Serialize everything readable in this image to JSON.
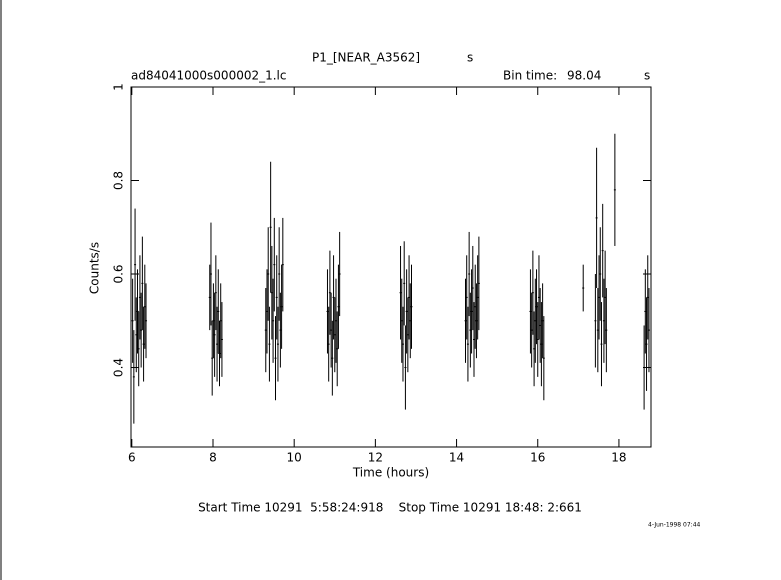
{
  "chart_data": {
    "type": "errorbar",
    "title": "P1_[NEAR_A3562]",
    "title_suffix": "s",
    "file_label": "ad84041000s000002_1.lc",
    "bin_time_label": "Bin time:",
    "bin_time": "98.04",
    "bin_time_unit": "s",
    "xlabel": "Time (hours)",
    "ylabel": "Counts/s",
    "footer": "Start Time 10291  5:58:24:918    Stop Time 10291 18:48: 2:661",
    "date": "4-Jun-1998 07:44",
    "color": "#000000",
    "xlim": [
      5.98,
      18.79
    ],
    "ylim": [
      0.23,
      1
    ],
    "xticks": [
      6,
      8,
      10,
      12,
      14,
      16,
      18
    ],
    "yticks": [
      0.4,
      0.6,
      0.8,
      1
    ],
    "x": [
      6.02,
      6.05,
      6.08,
      6.11,
      6.14,
      6.17,
      6.2,
      6.23,
      6.26,
      6.29,
      6.32,
      6.35,
      7.92,
      7.95,
      7.98,
      8.01,
      8.04,
      8.07,
      8.1,
      8.13,
      8.16,
      8.19,
      8.22,
      9.3,
      9.33,
      9.36,
      9.39,
      9.42,
      9.45,
      9.48,
      9.51,
      9.54,
      9.57,
      9.6,
      9.63,
      9.66,
      9.69,
      9.72,
      10.82,
      10.85,
      10.88,
      10.91,
      10.94,
      10.97,
      11.0,
      11.03,
      11.06,
      11.09,
      11.12,
      12.62,
      12.65,
      12.68,
      12.71,
      12.74,
      12.77,
      12.8,
      12.83,
      12.86,
      12.89,
      14.22,
      14.25,
      14.28,
      14.31,
      14.34,
      14.37,
      14.4,
      14.43,
      14.46,
      14.49,
      14.52,
      14.55,
      15.82,
      15.85,
      15.88,
      15.91,
      15.94,
      15.97,
      16.0,
      16.03,
      16.06,
      16.09,
      16.12,
      16.15,
      17.12,
      17.42,
      17.45,
      17.48,
      17.51,
      17.54,
      17.57,
      17.6,
      17.63,
      17.66,
      17.69,
      17.9,
      18.62,
      18.65,
      18.68,
      18.71,
      18.74
    ],
    "values": [
      0.5,
      0.38,
      0.62,
      0.47,
      0.52,
      0.44,
      0.55,
      0.48,
      0.58,
      0.45,
      0.53,
      0.5,
      0.55,
      0.6,
      0.42,
      0.5,
      0.47,
      0.56,
      0.45,
      0.52,
      0.43,
      0.5,
      0.46,
      0.48,
      0.52,
      0.6,
      0.45,
      0.7,
      0.56,
      0.5,
      0.62,
      0.42,
      0.55,
      0.45,
      0.6,
      0.48,
      0.53,
      0.62,
      0.52,
      0.45,
      0.56,
      0.48,
      0.42,
      0.55,
      0.47,
      0.5,
      0.44,
      0.53,
      0.6,
      0.56,
      0.5,
      0.45,
      0.58,
      0.4,
      0.52,
      0.47,
      0.55,
      0.5,
      0.53,
      0.5,
      0.55,
      0.45,
      0.6,
      0.48,
      0.52,
      0.57,
      0.46,
      0.53,
      0.5,
      0.55,
      0.58,
      0.52,
      0.48,
      0.56,
      0.44,
      0.5,
      0.53,
      0.46,
      0.55,
      0.49,
      0.45,
      0.5,
      0.42,
      0.57,
      0.5,
      0.72,
      0.48,
      0.55,
      0.6,
      0.45,
      0.65,
      0.5,
      0.55,
      0.48,
      0.78,
      0.4,
      0.52,
      0.45,
      0.55,
      0.48
    ],
    "errors": [
      0.09,
      0.1,
      0.12,
      0.08,
      0.09,
      0.08,
      0.09,
      0.08,
      0.1,
      0.08,
      0.09,
      0.08,
      0.07,
      0.11,
      0.08,
      0.08,
      0.09,
      0.08,
      0.08,
      0.09,
      0.07,
      0.08,
      0.08,
      0.09,
      0.09,
      0.1,
      0.08,
      0.14,
      0.1,
      0.09,
      0.1,
      0.09,
      0.09,
      0.08,
      0.1,
      0.08,
      0.09,
      0.1,
      0.09,
      0.08,
      0.09,
      0.08,
      0.08,
      0.09,
      0.08,
      0.09,
      0.08,
      0.09,
      0.09,
      0.1,
      0.09,
      0.08,
      0.09,
      0.09,
      0.09,
      0.08,
      0.09,
      0.08,
      0.09,
      0.09,
      0.09,
      0.08,
      0.09,
      0.08,
      0.09,
      0.09,
      0.08,
      0.09,
      0.08,
      0.09,
      0.1,
      0.09,
      0.08,
      0.09,
      0.08,
      0.09,
      0.08,
      0.08,
      0.09,
      0.08,
      0.09,
      0.08,
      0.09,
      0.05,
      0.1,
      0.15,
      0.09,
      0.09,
      0.1,
      0.09,
      0.1,
      0.09,
      0.1,
      0.09,
      0.12,
      0.09,
      0.09,
      0.1,
      0.09,
      0.09
    ]
  }
}
